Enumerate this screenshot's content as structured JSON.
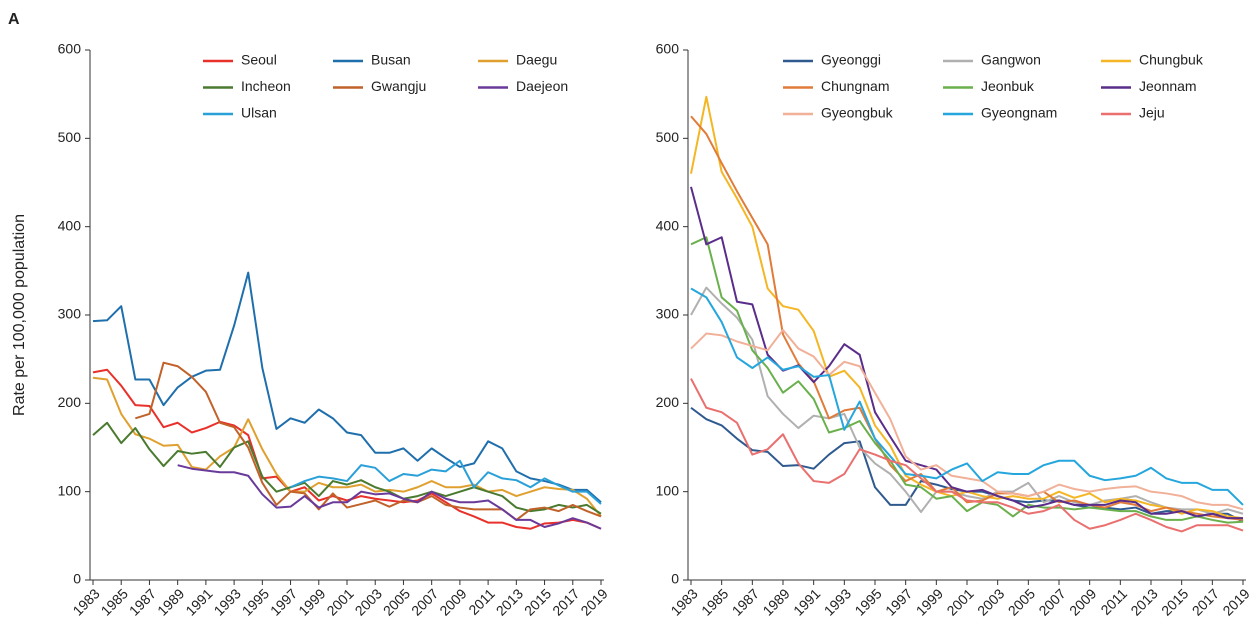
{
  "panel_label": "A",
  "chart_data": [
    {
      "type": "line",
      "ylabel": "Rate per 100,000 population",
      "x": [
        1983,
        1984,
        1985,
        1986,
        1987,
        1988,
        1989,
        1990,
        1991,
        1992,
        1993,
        1994,
        1995,
        1996,
        1997,
        1998,
        1999,
        2000,
        2001,
        2002,
        2003,
        2004,
        2005,
        2006,
        2007,
        2008,
        2009,
        2010,
        2011,
        2012,
        2013,
        2014,
        2015,
        2016,
        2017,
        2018,
        2019
      ],
      "xlim": [
        1983,
        2019
      ],
      "xticks": [
        1983,
        1985,
        1987,
        1989,
        1991,
        1993,
        1995,
        1997,
        1999,
        2001,
        2003,
        2005,
        2007,
        2009,
        2011,
        2013,
        2015,
        2017,
        2019
      ],
      "ylim": [
        0,
        600
      ],
      "yticks": [
        0,
        100,
        200,
        300,
        400,
        500,
        600
      ],
      "legend": "top-right",
      "series": [
        {
          "name": "Seoul",
          "color": "#e8312a",
          "values": [
            235,
            238,
            220,
            198,
            197,
            173,
            178,
            167,
            172,
            179,
            175,
            164,
            115,
            117,
            100,
            105,
            90,
            95,
            90,
            95,
            92,
            90,
            88,
            90,
            98,
            88,
            78,
            72,
            65,
            65,
            60,
            58,
            64,
            65,
            68,
            65,
            58
          ]
        },
        {
          "name": "Busan",
          "color": "#1f6fad",
          "values": [
            293,
            294,
            310,
            227,
            227,
            198,
            218,
            230,
            237,
            238,
            288,
            348,
            240,
            171,
            183,
            178,
            193,
            183,
            167,
            164,
            144,
            144,
            149,
            135,
            149,
            138,
            128,
            132,
            157,
            149,
            123,
            115,
            112,
            108,
            102,
            102,
            88
          ]
        },
        {
          "name": "Daegu",
          "color": "#e0a030",
          "values": [
            229,
            227,
            188,
            165,
            160,
            152,
            153,
            128,
            125,
            140,
            150,
            182,
            148,
            120,
            100,
            100,
            110,
            105,
            105,
            108,
            100,
            102,
            100,
            105,
            112,
            105,
            105,
            108,
            100,
            102,
            95,
            100,
            105,
            103,
            102,
            92,
            72
          ]
        },
        {
          "name": "Incheon",
          "color": "#4a7a2f",
          "values": [
            164,
            178,
            155,
            172,
            148,
            129,
            146,
            143,
            145,
            128,
            150,
            157,
            117,
            100,
            105,
            110,
            95,
            112,
            108,
            113,
            105,
            100,
            92,
            95,
            100,
            95,
            100,
            105,
            100,
            95,
            82,
            78,
            80,
            85,
            82,
            85,
            75
          ]
        },
        {
          "name": "Gwangju",
          "color": "#c0622a",
          "values": [
            null,
            null,
            null,
            183,
            188,
            246,
            242,
            230,
            213,
            178,
            173,
            150,
            110,
            85,
            100,
            98,
            80,
            98,
            82,
            86,
            90,
            83,
            90,
            88,
            95,
            85,
            82,
            80,
            80,
            80,
            68,
            80,
            82,
            78,
            85,
            78,
            72
          ]
        },
        {
          "name": "Daejeon",
          "color": "#6a3a9a",
          "values": [
            null,
            null,
            null,
            null,
            null,
            null,
            130,
            126,
            124,
            122,
            122,
            118,
            97,
            82,
            83,
            95,
            82,
            88,
            88,
            100,
            97,
            98,
            92,
            88,
            100,
            92,
            88,
            88,
            90,
            80,
            68,
            68,
            60,
            64,
            70,
            65,
            58
          ]
        },
        {
          "name": "Ulsan",
          "color": "#2aa0d8",
          "values": [
            null,
            null,
            null,
            null,
            null,
            null,
            null,
            null,
            null,
            null,
            null,
            null,
            null,
            null,
            105,
            112,
            117,
            115,
            112,
            130,
            127,
            112,
            120,
            118,
            125,
            123,
            135,
            105,
            122,
            115,
            113,
            105,
            115,
            107,
            100,
            100,
            86
          ]
        }
      ]
    },
    {
      "type": "line",
      "x": [
        1983,
        1984,
        1985,
        1986,
        1987,
        1988,
        1989,
        1990,
        1991,
        1992,
        1993,
        1994,
        1995,
        1996,
        1997,
        1998,
        1999,
        2000,
        2001,
        2002,
        2003,
        2004,
        2005,
        2006,
        2007,
        2008,
        2009,
        2010,
        2011,
        2012,
        2013,
        2014,
        2015,
        2016,
        2017,
        2018,
        2019
      ],
      "xlim": [
        1983,
        2019
      ],
      "xticks": [
        1983,
        1985,
        1987,
        1989,
        1991,
        1993,
        1995,
        1997,
        1999,
        2001,
        2003,
        2005,
        2007,
        2009,
        2011,
        2013,
        2015,
        2017,
        2019
      ],
      "ylim": [
        0,
        600
      ],
      "yticks": [
        0,
        100,
        200,
        300,
        400,
        500,
        600
      ],
      "legend": "top-right",
      "series": [
        {
          "name": "Gyeonggi",
          "color": "#2f5a8f",
          "values": [
            195,
            182,
            175,
            160,
            147,
            145,
            129,
            130,
            126,
            142,
            155,
            157,
            105,
            85,
            85,
            112,
            108,
            103,
            100,
            100,
            95,
            90,
            88,
            90,
            90,
            85,
            82,
            82,
            80,
            82,
            75,
            78,
            78,
            72,
            75,
            75,
            66
          ]
        },
        {
          "name": "Gangwon",
          "color": "#b0b0b0",
          "values": [
            300,
            331,
            313,
            297,
            272,
            208,
            188,
            172,
            186,
            183,
            188,
            150,
            132,
            120,
            100,
            77,
            100,
            100,
            95,
            92,
            100,
            100,
            110,
            88,
            95,
            88,
            85,
            90,
            92,
            95,
            88,
            82,
            80,
            80,
            75,
            80,
            75
          ]
        },
        {
          "name": "Chungbuk",
          "color": "#f4b624",
          "values": [
            460,
            547,
            462,
            432,
            400,
            330,
            310,
            306,
            282,
            230,
            237,
            218,
            175,
            152,
            118,
            108,
            100,
            95,
            100,
            95,
            92,
            95,
            92,
            92,
            100,
            93,
            98,
            88,
            92,
            90,
            85,
            82,
            75,
            80,
            78,
            72,
            70
          ]
        },
        {
          "name": "Chungnam",
          "color": "#e07b3a",
          "values": [
            525,
            505,
            472,
            440,
            410,
            380,
            278,
            245,
            225,
            183,
            192,
            195,
            160,
            130,
            112,
            120,
            100,
            105,
            88,
            90,
            98,
            98,
            95,
            100,
            88,
            90,
            85,
            82,
            88,
            85,
            78,
            82,
            78,
            75,
            72,
            70,
            68
          ]
        },
        {
          "name": "Jeonbuk",
          "color": "#6ab04c",
          "values": [
            380,
            388,
            320,
            305,
            260,
            240,
            212,
            225,
            205,
            167,
            172,
            180,
            155,
            135,
            108,
            105,
            92,
            95,
            78,
            88,
            85,
            72,
            85,
            82,
            82,
            80,
            82,
            80,
            78,
            78,
            72,
            68,
            68,
            72,
            68,
            65,
            66
          ]
        },
        {
          "name": "Jeonnam",
          "color": "#5a2d8a",
          "values": [
            445,
            380,
            388,
            315,
            312,
            255,
            237,
            243,
            224,
            242,
            267,
            255,
            190,
            162,
            135,
            130,
            125,
            105,
            100,
            102,
            95,
            90,
            82,
            85,
            90,
            85,
            85,
            85,
            90,
            88,
            75,
            75,
            78,
            72,
            75,
            70,
            70
          ]
        },
        {
          "name": "Gyeongbuk",
          "color": "#f1b098",
          "values": [
            262,
            279,
            277,
            270,
            265,
            260,
            283,
            262,
            253,
            232,
            247,
            242,
            212,
            182,
            140,
            125,
            130,
            118,
            115,
            112,
            100,
            98,
            95,
            100,
            108,
            103,
            100,
            103,
            105,
            106,
            100,
            98,
            95,
            88,
            85,
            85,
            80
          ]
        },
        {
          "name": "Gyeongnam",
          "color": "#25a6dd",
          "values": [
            330,
            320,
            292,
            252,
            240,
            252,
            238,
            242,
            230,
            232,
            170,
            202,
            160,
            140,
            120,
            118,
            115,
            125,
            132,
            112,
            122,
            120,
            120,
            130,
            135,
            135,
            118,
            113,
            115,
            118,
            127,
            115,
            110,
            110,
            102,
            102,
            85
          ]
        },
        {
          "name": "Jeju",
          "color": "#ea6f6f",
          "values": [
            228,
            195,
            190,
            178,
            142,
            148,
            165,
            132,
            112,
            110,
            120,
            148,
            142,
            135,
            130,
            115,
            100,
            100,
            90,
            88,
            88,
            82,
            75,
            78,
            85,
            68,
            58,
            62,
            68,
            75,
            68,
            60,
            55,
            62,
            62,
            62,
            56
          ]
        }
      ]
    }
  ]
}
